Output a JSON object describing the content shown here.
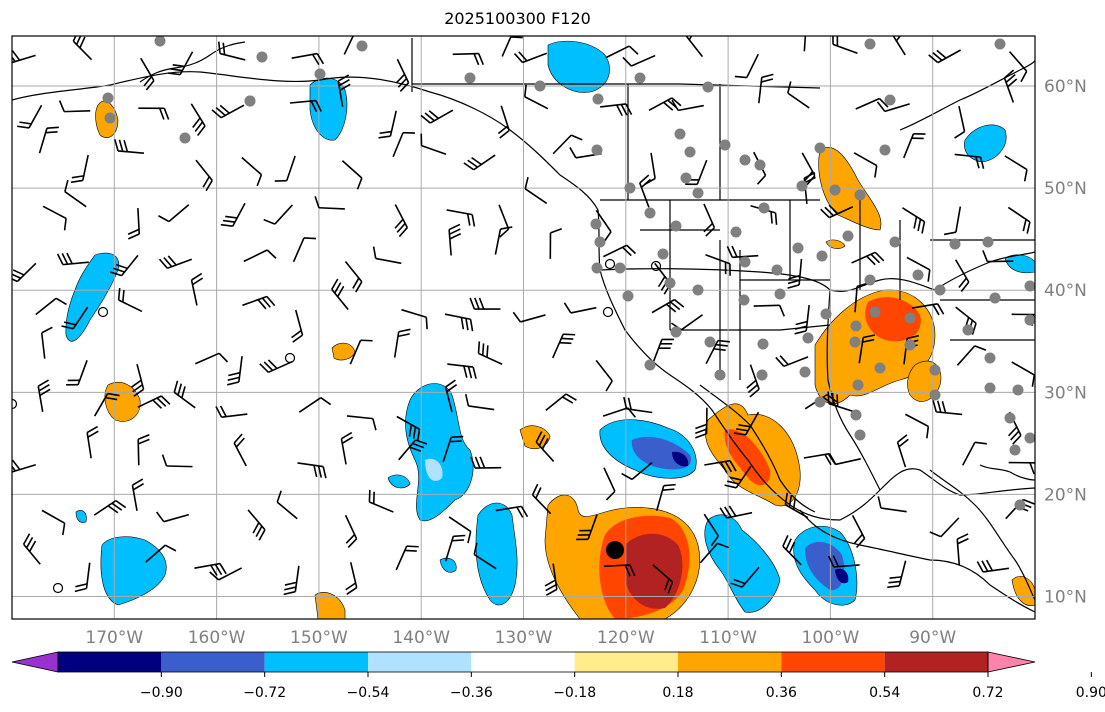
{
  "title": "2025100300 F120",
  "lon_ticks": [
    {
      "value": -170,
      "label": "170°W"
    },
    {
      "value": -160,
      "label": "160°W"
    },
    {
      "value": -150,
      "label": "150°W"
    },
    {
      "value": -140,
      "label": "140°W"
    },
    {
      "value": -130,
      "label": "130°W"
    },
    {
      "value": -120,
      "label": "120°W"
    },
    {
      "value": -110,
      "label": "110°W"
    },
    {
      "value": -100,
      "label": "100°W"
    },
    {
      "value": -90,
      "label": "90°W"
    }
  ],
  "lat_ticks": [
    {
      "value": 60,
      "label": "60°N"
    },
    {
      "value": 50,
      "label": "50°N"
    },
    {
      "value": 40,
      "label": "40°N"
    },
    {
      "value": 30,
      "label": "30°N"
    },
    {
      "value": 20,
      "label": "20°N"
    },
    {
      "value": 10,
      "label": "10°N"
    }
  ],
  "colorbar": {
    "boundaries": [
      "−0.90",
      "−0.72",
      "−0.54",
      "−0.36",
      "−0.18",
      "0.18",
      "0.36",
      "0.54",
      "0.72",
      "0.90"
    ],
    "colors": [
      "#9932cc",
      "#000080",
      "#3a5fcd",
      "#00bfff",
      "#b0e2ff",
      "#ffffff",
      "#ffec8b",
      "#ffa500",
      "#ff4500",
      "#b22222",
      "#ff82ab"
    ]
  },
  "colors": {
    "grid": "#aaaaaa",
    "tick_label": "#808080",
    "station": "#808080",
    "coast": "#000000"
  }
}
